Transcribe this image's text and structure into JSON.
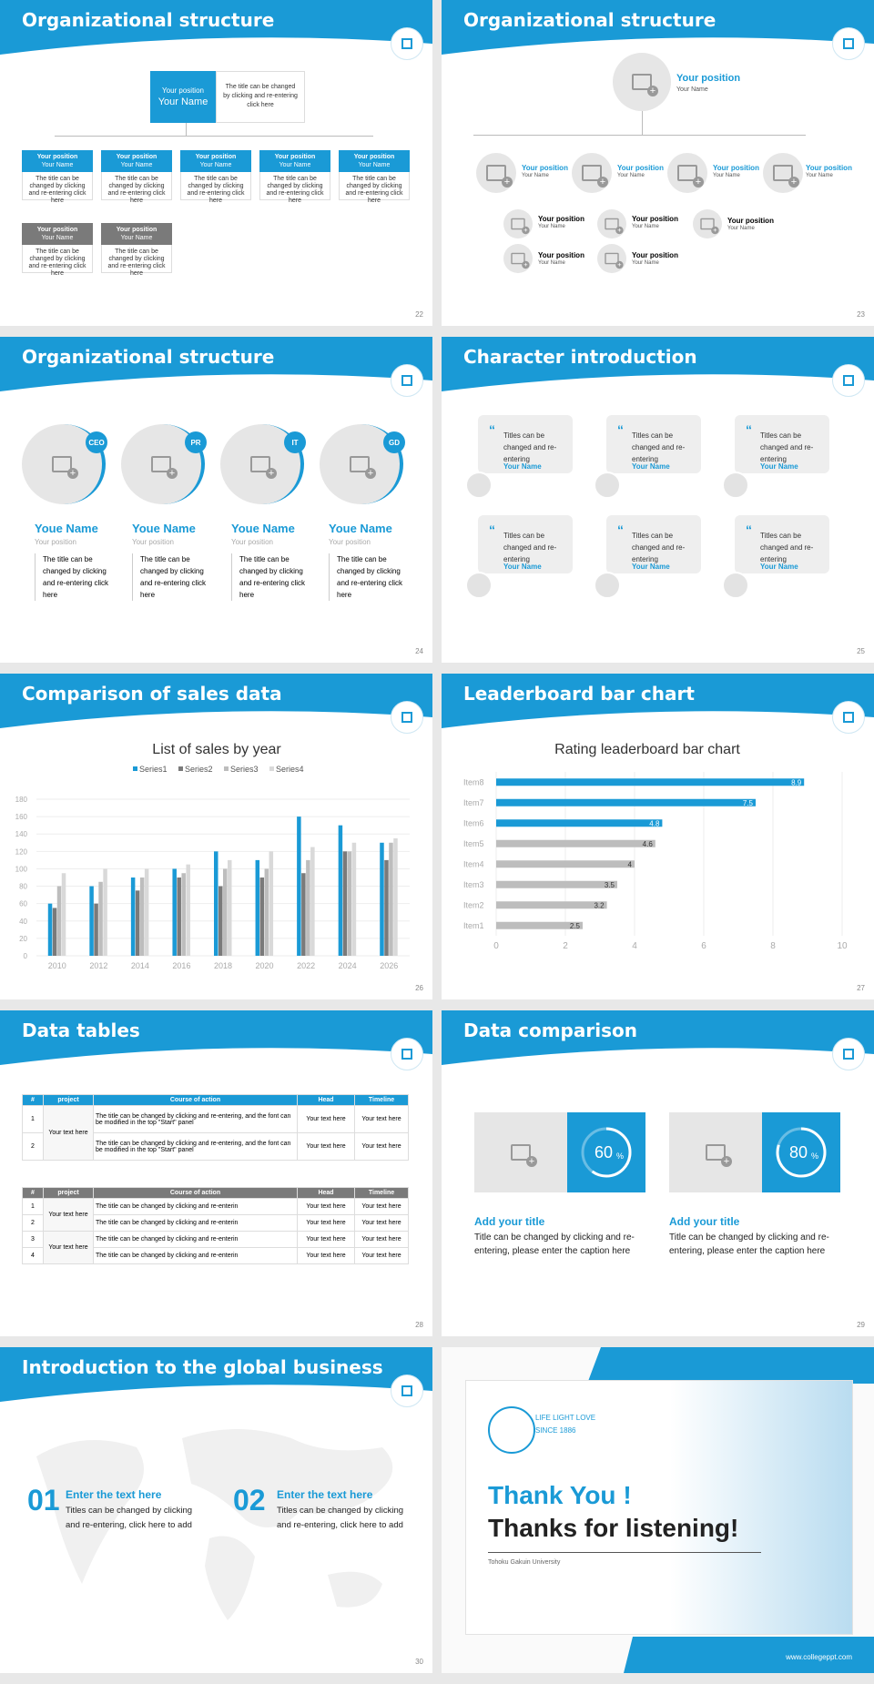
{
  "slides": [
    {
      "title": "Organizational structure",
      "page": "22",
      "top": {
        "position": "Your position",
        "name": "Your Name",
        "desc": "The title can be changed by clicking and re-entering click here"
      },
      "boxes": [
        {
          "position": "Your position",
          "name": "Your Name",
          "desc": "The title can be changed by clicking and re-entering click here",
          "color": "blue"
        },
        {
          "position": "Your position",
          "name": "Your Name",
          "desc": "The title can be changed by clicking and re-entering click here",
          "color": "blue"
        },
        {
          "position": "Your position",
          "name": "Your Name",
          "desc": "The title can be changed by clicking and re-entering click here",
          "color": "blue"
        },
        {
          "position": "Your position",
          "name": "Your Name",
          "desc": "The title can be changed by clicking and re-entering click here",
          "color": "blue"
        },
        {
          "position": "Your position",
          "name": "Your Name",
          "desc": "The title can be changed by clicking and re-entering click here",
          "color": "blue"
        },
        {
          "position": "Your position",
          "name": "Your Name",
          "desc": "The title can be changed by clicking and re-entering click here",
          "color": "gray"
        },
        {
          "position": "Your position",
          "name": "Your Name",
          "desc": "The title can be changed by clicking and re-entering click here",
          "color": "gray"
        }
      ]
    },
    {
      "title": "Organizational structure",
      "page": "23",
      "top": {
        "position": "Your position",
        "name": "Your Name"
      },
      "level2": [
        {
          "position": "Your position",
          "name": "Your Name"
        },
        {
          "position": "Your position",
          "name": "Your Name"
        },
        {
          "position": "Your position",
          "name": "Your Name"
        },
        {
          "position": "Your position",
          "name": "Your Name"
        }
      ],
      "level3": [
        {
          "position": "Your position",
          "name": "Your Name"
        },
        {
          "position": "Your position",
          "name": "Your Name"
        },
        {
          "position": "Your position",
          "name": "Your Name"
        },
        {
          "position": "Your position",
          "name": "Your Name"
        },
        {
          "position": "Your position",
          "name": "Your Name"
        }
      ]
    },
    {
      "title": "Organizational structure",
      "page": "24",
      "people": [
        {
          "tag": "CEO",
          "name": "Youe Name",
          "position": "Your position",
          "desc": "The title can be changed by clicking and re-entering click here"
        },
        {
          "tag": "PR",
          "name": "Youe Name",
          "position": "Your position",
          "desc": "The title can be changed by clicking and re-entering click here"
        },
        {
          "tag": "IT",
          "name": "Youe Name",
          "position": "Your position",
          "desc": "The title can be changed by clicking and re-entering click here"
        },
        {
          "tag": "GD",
          "name": "Youe Name",
          "position": "Your position",
          "desc": "The title can be changed by clicking and re-entering click here"
        }
      ]
    },
    {
      "title": "Character introduction",
      "page": "25",
      "quotes": [
        {
          "text": "Titles can be changed and re-entering",
          "name": "Your Name"
        },
        {
          "text": "Titles can be changed and re-entering",
          "name": "Your Name"
        },
        {
          "text": "Titles can be changed and re-entering",
          "name": "Your Name"
        },
        {
          "text": "Titles can be changed and re-entering",
          "name": "Your Name"
        },
        {
          "text": "Titles can be changed and re-entering",
          "name": "Your Name"
        },
        {
          "text": "Titles can be changed and re-entering",
          "name": "Your Name"
        }
      ]
    },
    {
      "title": "Comparison of sales data",
      "page": "26"
    },
    {
      "title": "Leaderboard bar chart",
      "page": "27"
    },
    {
      "title": "Data tables",
      "page": "28",
      "table1": {
        "headers": [
          "#",
          "project",
          "Course of action",
          "Head",
          "Timeline"
        ],
        "merged": "Your text here",
        "rows": [
          {
            "n": "1",
            "action": "The title can be changed by clicking and re-entering, and the font can be modified in the top \"Start\" panel",
            "head": "Your text here",
            "timeline": "Your text here"
          },
          {
            "n": "2",
            "action": "The title can be changed by clicking and re-entering, and the font can be modified in the top \"Start\" panel",
            "head": "Your text here",
            "timeline": "Your text here"
          }
        ]
      },
      "table2": {
        "headers": [
          "#",
          "project",
          "Course of action",
          "Head",
          "Timeline"
        ],
        "merged_a": "Your text here",
        "merged_b": "Your text here",
        "rows": [
          {
            "n": "1",
            "action": "The title can be changed by clicking and re-enterin",
            "head": "Your text here",
            "timeline": "Your text here"
          },
          {
            "n": "2",
            "action": "The title can be changed by clicking and re-enterin",
            "head": "Your text here",
            "timeline": "Your text here"
          },
          {
            "n": "3",
            "action": "The title can be changed by clicking and re-enterin",
            "head": "Your text here",
            "timeline": "Your text here"
          },
          {
            "n": "4",
            "action": "The title can be changed by clicking and re-enterin",
            "head": "Your text here",
            "timeline": "Your text here"
          }
        ]
      }
    },
    {
      "title": "Data comparison",
      "page": "29",
      "items": [
        {
          "percent": "60",
          "unit": "%",
          "value": 60,
          "heading": "Add your title",
          "desc": "Title can be changed by clicking and re-entering, please enter the caption here"
        },
        {
          "percent": "80",
          "unit": "%",
          "value": 80,
          "heading": "Add your title",
          "desc": "Title can be changed by clicking and re-entering, please enter the caption here"
        }
      ]
    },
    {
      "title": "Introduction to the global business",
      "page": "30",
      "items": [
        {
          "num": "01",
          "heading": "Enter the text here",
          "desc": "Titles can be changed by clicking and re-entering, click here to add"
        },
        {
          "num": "02",
          "heading": "Enter the text here",
          "desc": "Titles can be changed by clicking and re-entering, click here to add"
        }
      ]
    },
    {
      "thanks": "Thank You !",
      "listening": "Thanks for listening!",
      "university": "Tohoku Gakuin University",
      "site": "www.collegeppt.com",
      "logo_text": "LIFE LIGHT LOVE",
      "logo_since": "SINCE 1886"
    }
  ],
  "chart_data": [
    {
      "type": "bar",
      "title": "List of sales by year",
      "categories": [
        "2010",
        "2012",
        "2014",
        "2016",
        "2018",
        "2020",
        "2022",
        "2024",
        "2026"
      ],
      "series": [
        {
          "name": "Series1",
          "color": "#1a9ad6",
          "values": [
            60,
            80,
            90,
            100,
            120,
            110,
            160,
            150,
            130
          ]
        },
        {
          "name": "Series2",
          "color": "#7a7a7a",
          "values": [
            55,
            60,
            75,
            90,
            80,
            90,
            95,
            120,
            110
          ]
        },
        {
          "name": "Series3",
          "color": "#bdbdbd",
          "values": [
            80,
            85,
            90,
            95,
            100,
            100,
            110,
            120,
            130
          ]
        },
        {
          "name": "Series4",
          "color": "#d9d9d9",
          "values": [
            95,
            100,
            100,
            105,
            110,
            120,
            125,
            130,
            135
          ]
        }
      ],
      "yticks": [
        "0",
        "20",
        "40",
        "60",
        "80",
        "100",
        "120",
        "140",
        "160",
        "180"
      ],
      "ylim": [
        0,
        180
      ],
      "legend": "top"
    },
    {
      "type": "bar",
      "orientation": "horizontal",
      "title": "Rating leaderboard bar chart",
      "categories": [
        "Item8",
        "Item7",
        "Item6",
        "Item5",
        "Item4",
        "Item3",
        "Item2",
        "Item1"
      ],
      "values": [
        8.9,
        7.5,
        4.8,
        4.6,
        4,
        3.5,
        3.2,
        2.5
      ],
      "labels": [
        "8.9",
        "7.5",
        "4.8",
        "4.6",
        "4",
        "3.5",
        "3.2",
        "2.5"
      ],
      "colors": [
        "#1a9ad6",
        "#1a9ad6",
        "#1a9ad6",
        "#bdbdbd",
        "#bdbdbd",
        "#bdbdbd",
        "#bdbdbd",
        "#bdbdbd"
      ],
      "xticks": [
        "0",
        "2",
        "4",
        "6",
        "8",
        "10"
      ],
      "xlim": [
        0,
        10
      ]
    }
  ],
  "colors": {
    "accent": "#1a9ad6",
    "gray": "#7a7a7a"
  }
}
